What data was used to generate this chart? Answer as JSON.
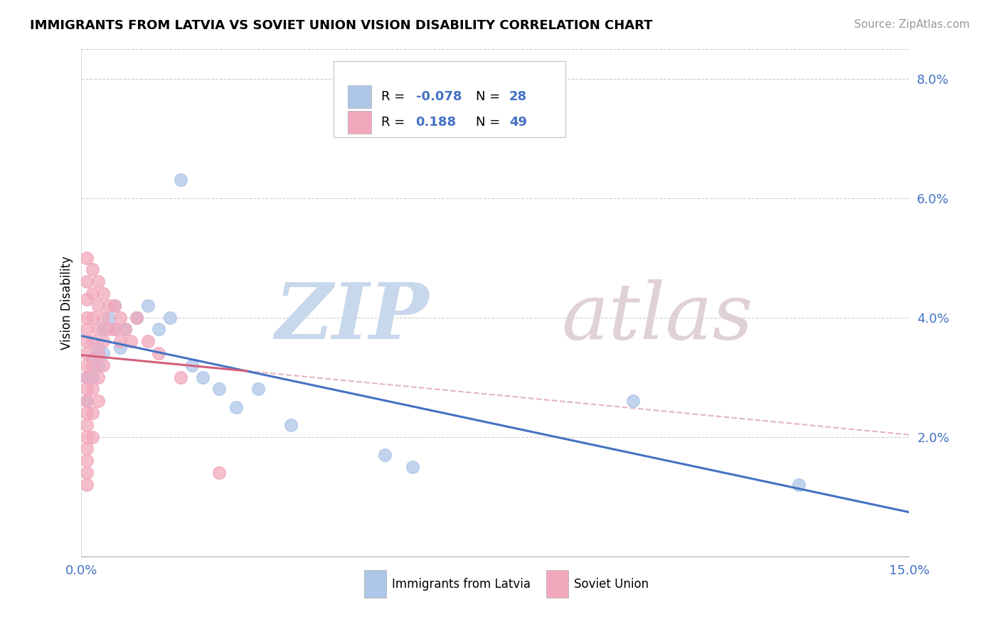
{
  "title": "IMMIGRANTS FROM LATVIA VS SOVIET UNION VISION DISABILITY CORRELATION CHART",
  "source": "Source: ZipAtlas.com",
  "ylabel": "Vision Disability",
  "xlim": [
    0.0,
    0.15
  ],
  "ylim": [
    0.0,
    0.085
  ],
  "yticks": [
    0.02,
    0.04,
    0.06,
    0.08
  ],
  "ytick_labels": [
    "2.0%",
    "4.0%",
    "6.0%",
    "8.0%"
  ],
  "xtick_labels": [
    "0.0%",
    "15.0%"
  ],
  "color_latvia": "#aec6e8",
  "color_soviet": "#f2a8bc",
  "color_line_latvia": "#4472C4",
  "color_line_soviet": "#d45f7a",
  "color_diag": "#e0a0b0",
  "latvia_points": [
    [
      0.001,
      0.03
    ],
    [
      0.001,
      0.026
    ],
    [
      0.002,
      0.033
    ],
    [
      0.002,
      0.03
    ],
    [
      0.003,
      0.035
    ],
    [
      0.003,
      0.032
    ],
    [
      0.004,
      0.038
    ],
    [
      0.004,
      0.034
    ],
    [
      0.005,
      0.04
    ],
    [
      0.006,
      0.042
    ],
    [
      0.006,
      0.038
    ],
    [
      0.007,
      0.035
    ],
    [
      0.008,
      0.038
    ],
    [
      0.01,
      0.04
    ],
    [
      0.012,
      0.042
    ],
    [
      0.014,
      0.038
    ],
    [
      0.016,
      0.04
    ],
    [
      0.018,
      0.063
    ],
    [
      0.02,
      0.032
    ],
    [
      0.022,
      0.03
    ],
    [
      0.025,
      0.028
    ],
    [
      0.028,
      0.025
    ],
    [
      0.032,
      0.028
    ],
    [
      0.038,
      0.022
    ],
    [
      0.055,
      0.017
    ],
    [
      0.06,
      0.015
    ],
    [
      0.1,
      0.026
    ],
    [
      0.13,
      0.012
    ]
  ],
  "soviet_points": [
    [
      0.001,
      0.05
    ],
    [
      0.001,
      0.046
    ],
    [
      0.001,
      0.043
    ],
    [
      0.001,
      0.04
    ],
    [
      0.001,
      0.038
    ],
    [
      0.001,
      0.036
    ],
    [
      0.001,
      0.034
    ],
    [
      0.001,
      0.032
    ],
    [
      0.001,
      0.03
    ],
    [
      0.001,
      0.028
    ],
    [
      0.001,
      0.026
    ],
    [
      0.001,
      0.024
    ],
    [
      0.001,
      0.022
    ],
    [
      0.001,
      0.02
    ],
    [
      0.001,
      0.018
    ],
    [
      0.001,
      0.016
    ],
    [
      0.001,
      0.014
    ],
    [
      0.001,
      0.012
    ],
    [
      0.002,
      0.048
    ],
    [
      0.002,
      0.044
    ],
    [
      0.002,
      0.04
    ],
    [
      0.002,
      0.036
    ],
    [
      0.002,
      0.032
    ],
    [
      0.002,
      0.028
    ],
    [
      0.002,
      0.024
    ],
    [
      0.002,
      0.02
    ],
    [
      0.003,
      0.046
    ],
    [
      0.003,
      0.042
    ],
    [
      0.003,
      0.038
    ],
    [
      0.003,
      0.034
    ],
    [
      0.003,
      0.03
    ],
    [
      0.003,
      0.026
    ],
    [
      0.004,
      0.044
    ],
    [
      0.004,
      0.04
    ],
    [
      0.004,
      0.036
    ],
    [
      0.004,
      0.032
    ],
    [
      0.005,
      0.042
    ],
    [
      0.005,
      0.038
    ],
    [
      0.006,
      0.042
    ],
    [
      0.006,
      0.038
    ],
    [
      0.007,
      0.04
    ],
    [
      0.007,
      0.036
    ],
    [
      0.008,
      0.038
    ],
    [
      0.009,
      0.036
    ],
    [
      0.01,
      0.04
    ],
    [
      0.012,
      0.036
    ],
    [
      0.014,
      0.034
    ],
    [
      0.018,
      0.03
    ],
    [
      0.025,
      0.014
    ]
  ]
}
